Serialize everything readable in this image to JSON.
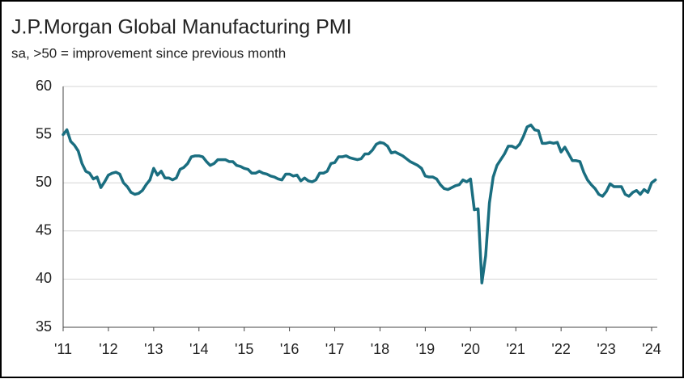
{
  "chart_data": {
    "type": "line",
    "title": "J.P.Morgan Global Manufacturing PMI",
    "subtitle": "sa, >50 = improvement since previous month",
    "categories": [
      "'11",
      null,
      null,
      null,
      null,
      null,
      null,
      null,
      null,
      null,
      null,
      null,
      "'12",
      null,
      null,
      null,
      null,
      null,
      null,
      null,
      null,
      null,
      null,
      null,
      "'13",
      null,
      null,
      null,
      null,
      null,
      null,
      null,
      null,
      null,
      null,
      null,
      "'14",
      null,
      null,
      null,
      null,
      null,
      null,
      null,
      null,
      null,
      null,
      null,
      "'15",
      null,
      null,
      null,
      null,
      null,
      null,
      null,
      null,
      null,
      null,
      null,
      "'16",
      null,
      null,
      null,
      null,
      null,
      null,
      null,
      null,
      null,
      null,
      null,
      "'17",
      null,
      null,
      null,
      null,
      null,
      null,
      null,
      null,
      null,
      null,
      null,
      "'18",
      null,
      null,
      null,
      null,
      null,
      null,
      null,
      null,
      null,
      null,
      null,
      "'19",
      null,
      null,
      null,
      null,
      null,
      null,
      null,
      null,
      null,
      null,
      null,
      "'20",
      null,
      null,
      null,
      null,
      null,
      null,
      null,
      null,
      null,
      null,
      null,
      "'21",
      null,
      null,
      null,
      null,
      null,
      null,
      null,
      null,
      null,
      null,
      null,
      "'22",
      null,
      null,
      null,
      null,
      null,
      null,
      null,
      null,
      null,
      null,
      null,
      "'23",
      null,
      null,
      null,
      null,
      null,
      null,
      null,
      null,
      null,
      null,
      null,
      "'24",
      null
    ],
    "series": [
      {
        "name": "J.P.Morgan Global Manufacturing PMI",
        "color": "#1a6e80",
        "values": [
          55.0,
          55.5,
          54.3,
          53.9,
          53.3,
          52.0,
          51.2,
          51.0,
          50.4,
          50.6,
          49.5,
          50.1,
          50.8,
          51.0,
          51.1,
          50.9,
          50.0,
          49.6,
          49.0,
          48.8,
          48.9,
          49.2,
          49.8,
          50.3,
          51.5,
          50.8,
          51.2,
          50.5,
          50.5,
          50.3,
          50.5,
          51.4,
          51.6,
          52.0,
          52.7,
          52.8,
          52.8,
          52.7,
          52.2,
          51.8,
          52.0,
          52.4,
          52.4,
          52.4,
          52.2,
          52.2,
          51.8,
          51.7,
          51.5,
          51.4,
          51.0,
          51.0,
          51.2,
          51.0,
          50.9,
          50.7,
          50.6,
          50.4,
          50.3,
          50.9,
          50.9,
          50.7,
          50.8,
          50.2,
          50.5,
          50.2,
          50.1,
          50.3,
          51.0,
          51.0,
          51.2,
          52.0,
          52.1,
          52.7,
          52.7,
          52.8,
          52.6,
          52.5,
          52.4,
          52.5,
          53.0,
          53.0,
          53.4,
          54.0,
          54.2,
          54.1,
          53.8,
          53.1,
          53.2,
          53.0,
          52.8,
          52.5,
          52.2,
          52.0,
          51.8,
          51.5,
          50.7,
          50.6,
          50.6,
          50.4,
          49.8,
          49.4,
          49.3,
          49.5,
          49.7,
          49.8,
          50.3,
          50.1,
          50.4,
          47.2,
          47.3,
          39.6,
          42.4,
          47.9,
          50.6,
          51.8,
          52.4,
          53.0,
          53.8,
          53.8,
          53.6,
          54.0,
          54.8,
          55.8,
          56.0,
          55.5,
          55.4,
          54.1,
          54.1,
          54.2,
          54.1,
          54.2,
          53.2,
          53.7,
          53.0,
          52.3,
          52.3,
          52.2,
          51.1,
          50.3,
          49.8,
          49.4,
          48.8,
          48.6,
          49.1,
          49.9,
          49.6,
          49.6,
          49.6,
          48.8,
          48.6,
          49.0,
          49.2,
          48.8,
          49.3,
          49.0,
          50.0,
          50.3
        ]
      }
    ],
    "ylim": [
      35,
      60
    ],
    "yticks": [
      35,
      40,
      45,
      50,
      55,
      60
    ],
    "grid": true
  }
}
